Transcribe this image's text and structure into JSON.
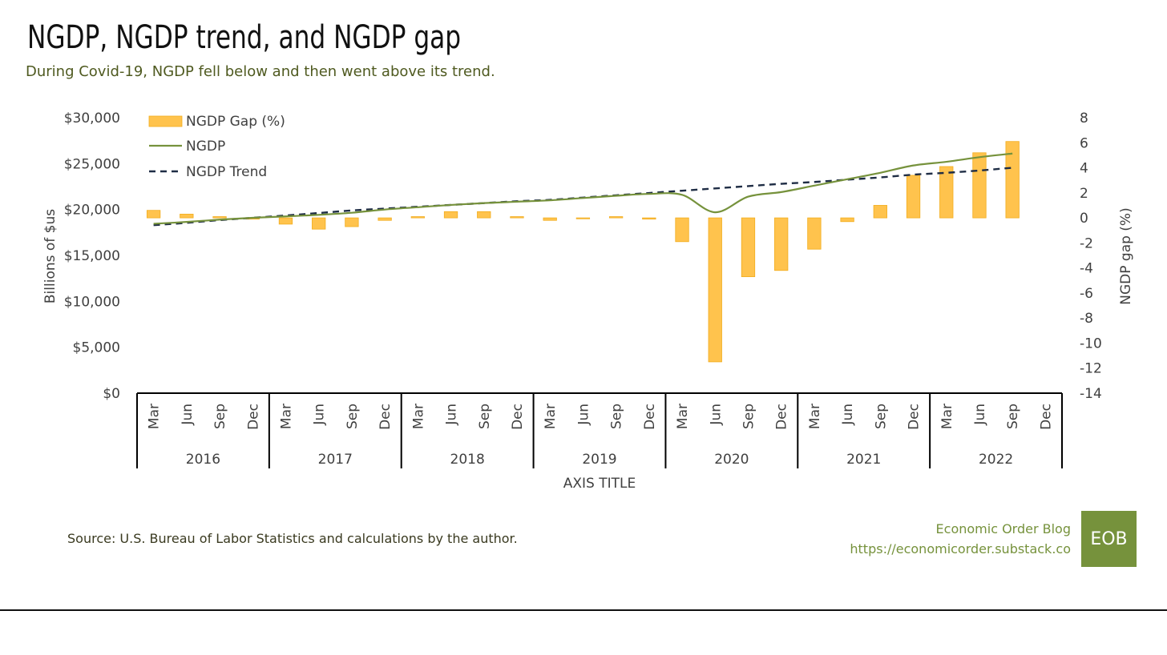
{
  "header": {
    "title": "NGDP, NGDP trend, and NGDP gap",
    "subtitle": "During Covid-19, NGDP fell below and then went above its trend."
  },
  "footer": {
    "source": "Source: U.S. Bureau of Labor Statistics and calculations by the author.",
    "blog_name": "Economic Order Blog",
    "blog_url": "https://economicorder.substack.co",
    "logo_text": "EOB"
  },
  "colors": {
    "gap_bar": "#ffc34d",
    "gap_bar_border": "#f2ad1e",
    "ngdp_line": "#76923c",
    "trend_line": "#1f2d45",
    "axis_text": "#404040"
  },
  "chart_data": {
    "type": "bar",
    "xlabel": "AXIS TITLE",
    "ylabel_left": "Billions of $us",
    "ylabel_right": "NGDP gap (%)",
    "ylim_left": [
      0,
      30000
    ],
    "ylim_right": [
      -14,
      8
    ],
    "left_ticks": [
      "$0",
      "$5,000",
      "$10,000",
      "$15,000",
      "$20,000",
      "$25,000",
      "$30,000"
    ],
    "right_ticks": [
      "-14",
      "-12",
      "-10",
      "-8",
      "-6",
      "-4",
      "-2",
      "0",
      "2",
      "4",
      "6",
      "8"
    ],
    "legend_position": "top-left",
    "years": [
      "2016",
      "2017",
      "2018",
      "2019",
      "2020",
      "2021",
      "2022"
    ],
    "quarters": [
      "Mar",
      "Jun",
      "Sep",
      "Dec"
    ],
    "categories": [
      "2016 Mar",
      "2016 Jun",
      "2016 Sep",
      "2016 Dec",
      "2017 Mar",
      "2017 Jun",
      "2017 Sep",
      "2017 Dec",
      "2018 Mar",
      "2018 Jun",
      "2018 Sep",
      "2018 Dec",
      "2019 Mar",
      "2019 Jun",
      "2019 Sep",
      "2019 Dec",
      "2020 Mar",
      "2020 Jun",
      "2020 Sep",
      "2020 Dec",
      "2021 Mar",
      "2021 Jun",
      "2021 Sep",
      "2021 Dec",
      "2022 Mar",
      "2022 Jun",
      "2022 Sep",
      "2022 Dec"
    ],
    "series": [
      {
        "name": "NGDP Gap (%)",
        "type": "bar",
        "axis": "right",
        "values": [
          0.6,
          0.3,
          0.1,
          -0.1,
          -0.5,
          -0.9,
          -0.7,
          -0.2,
          0.1,
          0.5,
          0.5,
          0.1,
          -0.2,
          0.0,
          0.1,
          -0.1,
          -1.9,
          -11.5,
          -4.7,
          -4.2,
          -2.5,
          -0.3,
          1.0,
          3.4,
          4.1,
          5.2,
          6.1,
          null
        ]
      },
      {
        "name": "NGDP",
        "type": "line",
        "axis": "left",
        "values": [
          18450,
          18650,
          18900,
          19100,
          19250,
          19420,
          19650,
          20000,
          20250,
          20500,
          20700,
          20850,
          21000,
          21250,
          21500,
          21700,
          21600,
          19700,
          21400,
          21900,
          22600,
          23300,
          24000,
          24800,
          25200,
          25700,
          26100,
          null
        ]
      },
      {
        "name": "NGDP Trend",
        "type": "line",
        "axis": "left",
        "values": [
          18300,
          18550,
          18850,
          19100,
          19350,
          19620,
          19900,
          20100,
          20300,
          20500,
          20700,
          20900,
          21050,
          21300,
          21550,
          21800,
          22050,
          22300,
          22550,
          22800,
          23000,
          23250,
          23500,
          23800,
          24000,
          24250,
          24550,
          null
        ]
      }
    ]
  }
}
